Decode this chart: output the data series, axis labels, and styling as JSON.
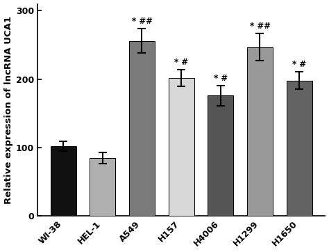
{
  "categories": [
    "WI-38",
    "HEL-1",
    "A549",
    "H157",
    "H4006",
    "H1299",
    "H1650"
  ],
  "values": [
    102,
    85,
    256,
    202,
    176,
    247,
    198
  ],
  "errors": [
    7,
    8,
    18,
    12,
    15,
    20,
    13
  ],
  "bar_colors": [
    "#111111",
    "#b0b0b0",
    "#7a7a7a",
    "#d8d8d8",
    "#555555",
    "#999999",
    "#636363"
  ],
  "annotations": [
    "",
    "",
    "* ##",
    "* #",
    "* #",
    "* ##",
    "* #"
  ],
  "ylabel": "Relative expression of lncRNA UCA1",
  "ylim": [
    0,
    310
  ],
  "yticks": [
    0,
    100,
    200,
    300
  ],
  "background_color": "#ffffff",
  "bar_width": 0.65,
  "annotation_fontsize": 8.5,
  "tick_fontsize": 9,
  "ylabel_fontsize": 9.5
}
